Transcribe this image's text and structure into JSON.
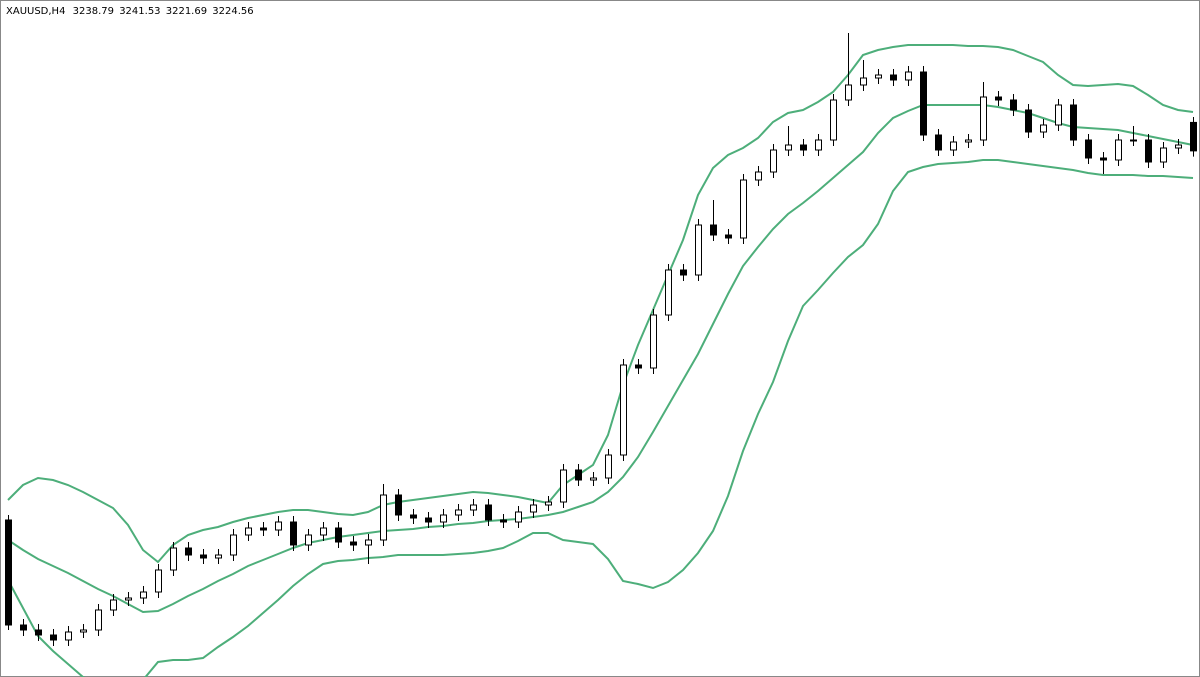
{
  "chart_data": {
    "type": "candlestick",
    "title": "XAUUSD,H4",
    "ylim": [
      2961.5,
      3300
    ],
    "bull_color": "#ffffff",
    "bear_color": "#000000",
    "outline_color": "#000000",
    "open": [
      3040,
      2987.5,
      2985,
      2982.5,
      2980,
      2984,
      2985,
      2995,
      3000,
      3001,
      3004,
      3015,
      3026,
      3022.5,
      3021,
      3022.5,
      3032.5,
      3036,
      3035,
      3039,
      3027.5,
      3032.5,
      3036,
      3029,
      3027.5,
      3030,
      3052.5,
      3042.5,
      3041,
      3039,
      3042.5,
      3045,
      3047.5,
      3040,
      3039,
      3044,
      3047.5,
      3049,
      3065,
      3060,
      3061,
      3072.5,
      3117.5,
      3116,
      3142.5,
      3165,
      3162.5,
      3187.5,
      3182.5,
      3181,
      3210,
      3214,
      3225,
      3227.5,
      3225,
      3230,
      3250,
      3257.5,
      3261,
      3262.5,
      3260,
      3264,
      3232.5,
      3225,
      3229,
      3230,
      3251.5,
      3250,
      3245,
      3234,
      3237.5,
      3247.5,
      3230,
      3221,
      3220,
      3230,
      3230,
      3219,
      3226,
      3238.79
    ],
    "high": [
      3042.5,
      2990.5,
      2988,
      2985.5,
      2987,
      2988,
      2998,
      3003,
      3004,
      3007,
      3018,
      3029,
      3029,
      3025.5,
      3025.5,
      3035.5,
      3039,
      3039,
      3042,
      3042,
      3035.5,
      3039,
      3039,
      3032,
      3033,
      3058,
      3055.5,
      3045.5,
      3044,
      3045.5,
      3048,
      3050.5,
      3050.5,
      3043,
      3047,
      3050.5,
      3052,
      3068,
      3068,
      3064,
      3075.5,
      3120.5,
      3120.5,
      3145.5,
      3168,
      3168,
      3190.5,
      3200,
      3185.5,
      3213,
      3217,
      3228,
      3237,
      3230.5,
      3233,
      3253,
      3283.5,
      3270,
      3265.5,
      3265.5,
      3267,
      3267,
      3235.5,
      3232,
      3233,
      3259,
      3254.5,
      3253,
      3248,
      3240.5,
      3250.5,
      3250.5,
      3233,
      3224,
      3233,
      3237,
      3233,
      3229,
      3230.5,
      3241.53
    ],
    "low": [
      2985,
      2982,
      2979.5,
      2977,
      2977,
      2981,
      2982,
      2992,
      2997,
      2998,
      3001,
      3012,
      3019.5,
      3018,
      3018,
      3019.5,
      3029.5,
      3032,
      3032,
      3024.5,
      3024.5,
      3029.5,
      3026,
      3024.5,
      3018,
      3027,
      3039.5,
      3038,
      3036,
      3036,
      3039.5,
      3042,
      3037,
      3036,
      3036,
      3041,
      3044.5,
      3046,
      3057,
      3057,
      3058,
      3069.5,
      3113,
      3113,
      3139.5,
      3159.5,
      3159.5,
      3179.5,
      3178,
      3178,
      3207,
      3211,
      3222,
      3222,
      3222,
      3227,
      3247,
      3254.5,
      3258,
      3257,
      3257,
      3229.5,
      3222,
      3222,
      3226,
      3227,
      3247,
      3242,
      3231,
      3231,
      3234.5,
      3227,
      3218,
      3213,
      3217,
      3227,
      3216,
      3216,
      3223,
      3221.69
    ],
    "close": [
      2987.5,
      2985,
      2982.5,
      2980,
      2984,
      2985,
      2995,
      3000,
      3001,
      3004,
      3015,
      3026,
      3022.5,
      3021,
      3022.5,
      3032.5,
      3036,
      3035,
      3039,
      3027.5,
      3032.5,
      3036,
      3029,
      3027.5,
      3030,
      3052.5,
      3042.5,
      3041,
      3039,
      3042.5,
      3045,
      3047.5,
      3040,
      3039,
      3044,
      3047.5,
      3049,
      3065,
      3060,
      3061,
      3072.5,
      3117.5,
      3116,
      3142.5,
      3165,
      3162.5,
      3187.5,
      3182.5,
      3181,
      3210,
      3214,
      3225,
      3227.5,
      3225,
      3230,
      3250,
      3257.5,
      3261,
      3262.5,
      3260,
      3264,
      3232.5,
      3225,
      3229,
      3230,
      3251.5,
      3250,
      3245,
      3234,
      3237.5,
      3247.5,
      3230,
      3221,
      3220,
      3230,
      3230,
      3219,
      3226,
      3227.5,
      3224.56
    ],
    "bands": [
      {
        "color": "#4dae7a",
        "values": [
          3050,
          3057.5,
          3061,
          3060,
          3057.5,
          3054,
          3050,
          3046,
          3037.5,
          3025,
          3019,
          3027.5,
          3032.5,
          3035,
          3036.5,
          3039,
          3041,
          3042.5,
          3044,
          3045,
          3045,
          3044,
          3043,
          3042.5,
          3044,
          3047.5,
          3049,
          3050,
          3051,
          3052,
          3053,
          3054,
          3053.5,
          3052.5,
          3051.5,
          3050,
          3048.5,
          3057.5,
          3062.5,
          3067.5,
          3082.5,
          3107.5,
          3127.5,
          3145,
          3162.5,
          3180,
          3202.5,
          3216,
          3222.5,
          3226,
          3231,
          3239,
          3243.5,
          3245,
          3249,
          3254,
          3262.5,
          3272.5,
          3275,
          3276.5,
          3277.5,
          3277.5,
          3277.5,
          3277.5,
          3277,
          3277,
          3276.5,
          3275,
          3272,
          3269,
          3262.5,
          3257.5,
          3257,
          3257.5,
          3258,
          3257,
          3252.5,
          3247.5,
          3245,
          3244
        ]
      },
      {
        "color": "#4dae7a",
        "values": [
          3030,
          3025,
          3020.5,
          3017,
          3013.5,
          3009.5,
          3005.5,
          3002,
          2998,
          2994,
          2994.5,
          2998,
          3002,
          3005.5,
          3009.5,
          3013,
          3017,
          3020,
          3023,
          3026,
          3028.5,
          3030,
          3031.5,
          3032.5,
          3033.5,
          3034.5,
          3035,
          3035.5,
          3036.5,
          3037,
          3038,
          3038.5,
          3039.5,
          3040,
          3040.5,
          3041.5,
          3042.5,
          3044,
          3046.5,
          3049,
          3054,
          3061.5,
          3071.5,
          3084,
          3097,
          3110,
          3123,
          3138,
          3153,
          3167,
          3176.5,
          3185.5,
          3193,
          3198.5,
          3204.5,
          3211,
          3217.5,
          3224,
          3233.5,
          3241,
          3244.5,
          3247.5,
          3247.5,
          3247.5,
          3247.5,
          3247.5,
          3246.5,
          3245,
          3243.5,
          3241,
          3238.5,
          3236.5,
          3236,
          3235.5,
          3235,
          3233.5,
          3232,
          3230.5,
          3229,
          3227.5
        ]
      },
      {
        "color": "#4dae7a",
        "values": [
          3010,
          2996,
          2982,
          2974.5,
          2968,
          2961.5,
          2958,
          2956,
          2956,
          2960,
          2969,
          2970,
          2970,
          2971,
          2976.5,
          2981.5,
          2987,
          2993.5,
          3000,
          3007,
          3013,
          3018,
          3019.5,
          3020,
          3021,
          3021.5,
          3022.5,
          3022.5,
          3022.5,
          3022.5,
          3023,
          3023.5,
          3024.5,
          3026,
          3029.5,
          3033.5,
          3033.5,
          3030,
          3029,
          3028,
          3020.5,
          3009.5,
          3008,
          3006,
          3009,
          3015,
          3023.5,
          3034.5,
          3052,
          3074.5,
          3093,
          3109,
          3129.5,
          3147,
          3155,
          3163.5,
          3171.5,
          3177.5,
          3188,
          3204.5,
          3214,
          3216.5,
          3218,
          3218.5,
          3219,
          3220,
          3220,
          3219,
          3218,
          3217,
          3216,
          3215,
          3213.5,
          3212.5,
          3212.5,
          3212.5,
          3212,
          3212,
          3211.5,
          3211
        ]
      }
    ]
  }
}
